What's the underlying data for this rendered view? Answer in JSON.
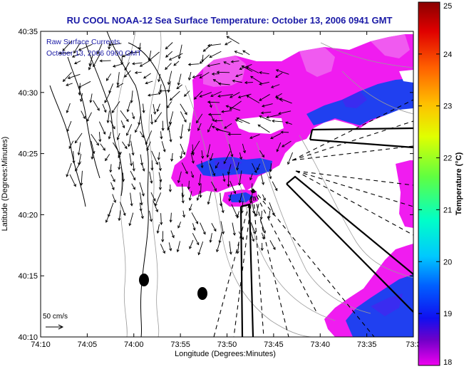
{
  "title": "RU COOL  NOAA-12  Sea Surface Temperature:  October 13, 2006 0941 GMT",
  "legend": {
    "line1": "Raw Surface Currents",
    "line2": "October 13, 2006 0900 GMT"
  },
  "scale_label": "50 cm/s",
  "xlabel": "Longitude (Degrees:Minutes)",
  "ylabel": "Latitude (Degrees:Minutes)",
  "x_ticks": [
    "74:10",
    "74:05",
    "74:00",
    "73:55",
    "73:50",
    "73:45",
    "73:40",
    "73:35",
    "73:3"
  ],
  "y_ticks": [
    "40:35",
    "40:30",
    "40:25",
    "40:20",
    "40:15",
    "40:10"
  ],
  "colorbar": {
    "label": "Temperature (°C)",
    "ticks": [
      "25",
      "24",
      "23",
      "22",
      "21",
      "20",
      "19",
      "18"
    ],
    "range": [
      18,
      25
    ],
    "colors": [
      "#f000f0",
      "#7000c8",
      "#1010f0",
      "#00a0ff",
      "#00ffff",
      "#60ff60",
      "#ffff00",
      "#ffa000",
      "#ff3000",
      "#c00000",
      "#8a0000"
    ]
  },
  "sst_colors": {
    "magenta": "#f01cf0",
    "pink": "#f05af0",
    "blue": "#2040f0",
    "royal": "#3a2cf0"
  },
  "map": {
    "lon_range": [
      "74:10",
      "73:3"
    ],
    "lat_range": [
      "40:10",
      "40:35"
    ],
    "buoys": 2
  }
}
